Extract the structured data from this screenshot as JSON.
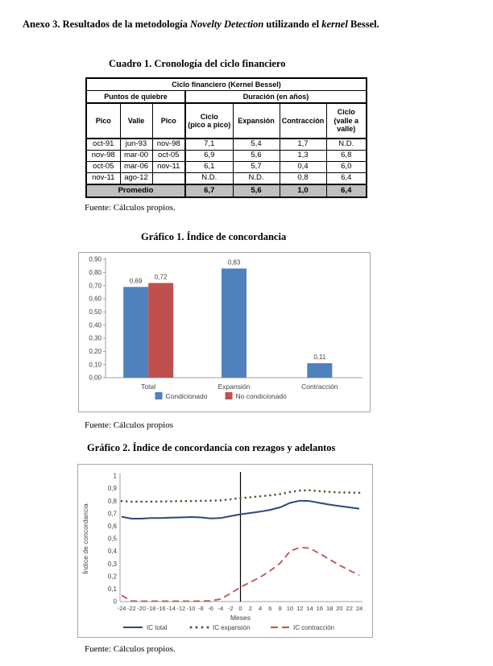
{
  "page": {
    "title_segments": [
      {
        "text": "Anexo 3. Resultados de la metodología ",
        "italic": false
      },
      {
        "text": "Novelty Detection",
        "italic": true
      },
      {
        "text": " utilizando el ",
        "italic": false
      },
      {
        "text": "kernel",
        "italic": true
      },
      {
        "text": " Bessel.",
        "italic": false
      }
    ]
  },
  "table_section": {
    "heading": "Cuadro 1. Cronología del ciclo financiero",
    "table": {
      "title": "Ciclo financiero (Kernel Bessel)",
      "groups": [
        {
          "label": "Puntos de quiebre",
          "span": 3
        },
        {
          "label": "Duración (en años)",
          "span": 4
        }
      ],
      "columns": [
        "Pico",
        "Valle",
        "Pico",
        "Ciclo\n(pico a pico)",
        "Expansión",
        "Contracción",
        "Ciclo\n(valle a\nvalle)"
      ],
      "rows": [
        [
          "oct-91",
          "jun-93",
          "nov-98",
          "7,1",
          "5,4",
          "1,7",
          "N.D."
        ],
        [
          "nov-98",
          "mar-00",
          "oct-05",
          "6,9",
          "5,6",
          "1,3",
          "6,8"
        ],
        [
          "oct-05",
          "mar-06",
          "nov-11",
          "6,1",
          "5,7",
          "0,4",
          "6,0"
        ],
        [
          "nov-11",
          "ago-12",
          "",
          "N.D.",
          "N.D.",
          "0,8",
          "6,4"
        ]
      ],
      "footer": {
        "label": "Promedio",
        "values": [
          "6,7",
          "5,6",
          "1,0",
          "6,4"
        ]
      }
    },
    "source": "Fuente: Cálculos propios."
  },
  "chart1_section": {
    "heading": "Gráfico 1. Índice de concordancia",
    "source": "Fuente: Cálculos propios"
  },
  "chart2_section": {
    "heading": "Gráfico 2. Índice de concordancia con rezagos y adelantos",
    "source": "Fuente: Cálculos propios."
  },
  "colors": {
    "bar_blue": "#4f81bd",
    "bar_red": "#c0504d",
    "line_navy": "#2b4a77",
    "line_olive": "#55562f",
    "line_red": "#c0504d",
    "axis_gray": "#9aa0a6",
    "label_gray": "#3f3f3f",
    "promedio_gray": "#bfbfbf"
  },
  "chart_data": [
    {
      "type": "bar",
      "title": "Gráfico 1. Índice de concordancia",
      "categories": [
        "Total",
        "Expansión",
        "Contracción"
      ],
      "series": [
        {
          "name": "Condicionado",
          "color": "#4f81bd",
          "values": [
            0.69,
            0.83,
            0.11
          ]
        },
        {
          "name": "No condicionado",
          "color": "#c0504d",
          "values": [
            0.72,
            null,
            null
          ]
        }
      ],
      "data_labels": [
        [
          "0,69",
          "0,83",
          "0,11"
        ],
        [
          "0,72",
          "",
          ""
        ]
      ],
      "ylim": [
        0,
        0.9
      ],
      "ytick_step": 0.1,
      "grid": false,
      "legend_position": "bottom"
    },
    {
      "type": "line",
      "title": "Gráfico 2. Índice de concordancia con rezagos y adelantos",
      "xlabel": "Meses",
      "ylabel": "Índice de concordancia",
      "ylim": [
        0,
        1
      ],
      "ytick_step": 0.1,
      "vertical_line_x": 0,
      "grid": false,
      "legend_position": "bottom",
      "x": [
        -24,
        -22,
        -20,
        -18,
        -16,
        -14,
        -12,
        -10,
        -8,
        -6,
        -4,
        -2,
        0,
        2,
        4,
        6,
        8,
        10,
        12,
        14,
        16,
        18,
        20,
        22,
        24
      ],
      "series": [
        {
          "name": "IC total",
          "style": "solid",
          "color": "#2b4a77",
          "values": [
            0.675,
            0.66,
            0.66,
            0.665,
            0.665,
            0.668,
            0.67,
            0.673,
            0.67,
            0.662,
            0.665,
            0.68,
            0.695,
            0.705,
            0.716,
            0.73,
            0.75,
            0.785,
            0.803,
            0.8,
            0.785,
            0.772,
            0.76,
            0.75,
            0.74
          ]
        },
        {
          "name": "IC expansión",
          "style": "dotted",
          "color": "#55562f",
          "values": [
            0.8,
            0.795,
            0.795,
            0.796,
            0.797,
            0.798,
            0.8,
            0.8,
            0.802,
            0.803,
            0.806,
            0.814,
            0.824,
            0.831,
            0.838,
            0.846,
            0.856,
            0.872,
            0.884,
            0.886,
            0.879,
            0.873,
            0.869,
            0.868,
            0.866
          ]
        },
        {
          "name": "IC contracción",
          "style": "dashed",
          "color": "#c0504d",
          "values": [
            0.05,
            0.004,
            0.003,
            0.003,
            0.003,
            0.003,
            0.003,
            0.003,
            0.004,
            0.006,
            0.02,
            0.065,
            0.115,
            0.155,
            0.195,
            0.245,
            0.305,
            0.4,
            0.432,
            0.425,
            0.382,
            0.335,
            0.29,
            0.248,
            0.21
          ]
        }
      ]
    }
  ]
}
